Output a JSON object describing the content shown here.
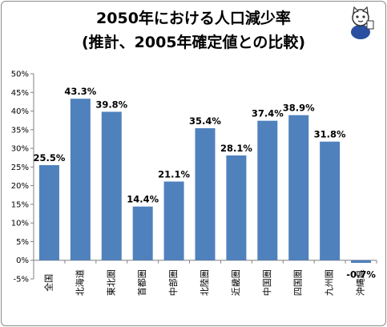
{
  "title_line1": "2050年における人口減少率",
  "title_line2": "(推計、2005年確定値との比較)",
  "mascot_icon": "cat-mascot-icon",
  "chart_data": {
    "type": "bar",
    "title": "2050年における人口減少率 (推計、2005年確定値との比較)",
    "categories": [
      "全国",
      "北海道",
      "東北圏",
      "首都圏",
      "中部圏",
      "北陸圏",
      "近畿圏",
      "中国圏",
      "四国圏",
      "九州圏",
      "沖縄県"
    ],
    "values": [
      25.5,
      43.3,
      39.8,
      14.4,
      21.1,
      35.4,
      28.1,
      37.4,
      38.9,
      31.8,
      -0.7
    ],
    "value_labels": [
      "25.5%",
      "43.3%",
      "39.8%",
      "14.4%",
      "21.1%",
      "35.4%",
      "28.1%",
      "37.4%",
      "38.9%",
      "31.8%",
      "-0.7%"
    ],
    "yticks": [
      "50%",
      "45%",
      "40%",
      "35%",
      "30%",
      "25%",
      "20%",
      "15%",
      "10%",
      "5%",
      "0%",
      "-5%"
    ],
    "ylim": [
      -5,
      50
    ],
    "grid": false,
    "bar_color": "#4f81bd",
    "xlabel": "",
    "ylabel": ""
  }
}
